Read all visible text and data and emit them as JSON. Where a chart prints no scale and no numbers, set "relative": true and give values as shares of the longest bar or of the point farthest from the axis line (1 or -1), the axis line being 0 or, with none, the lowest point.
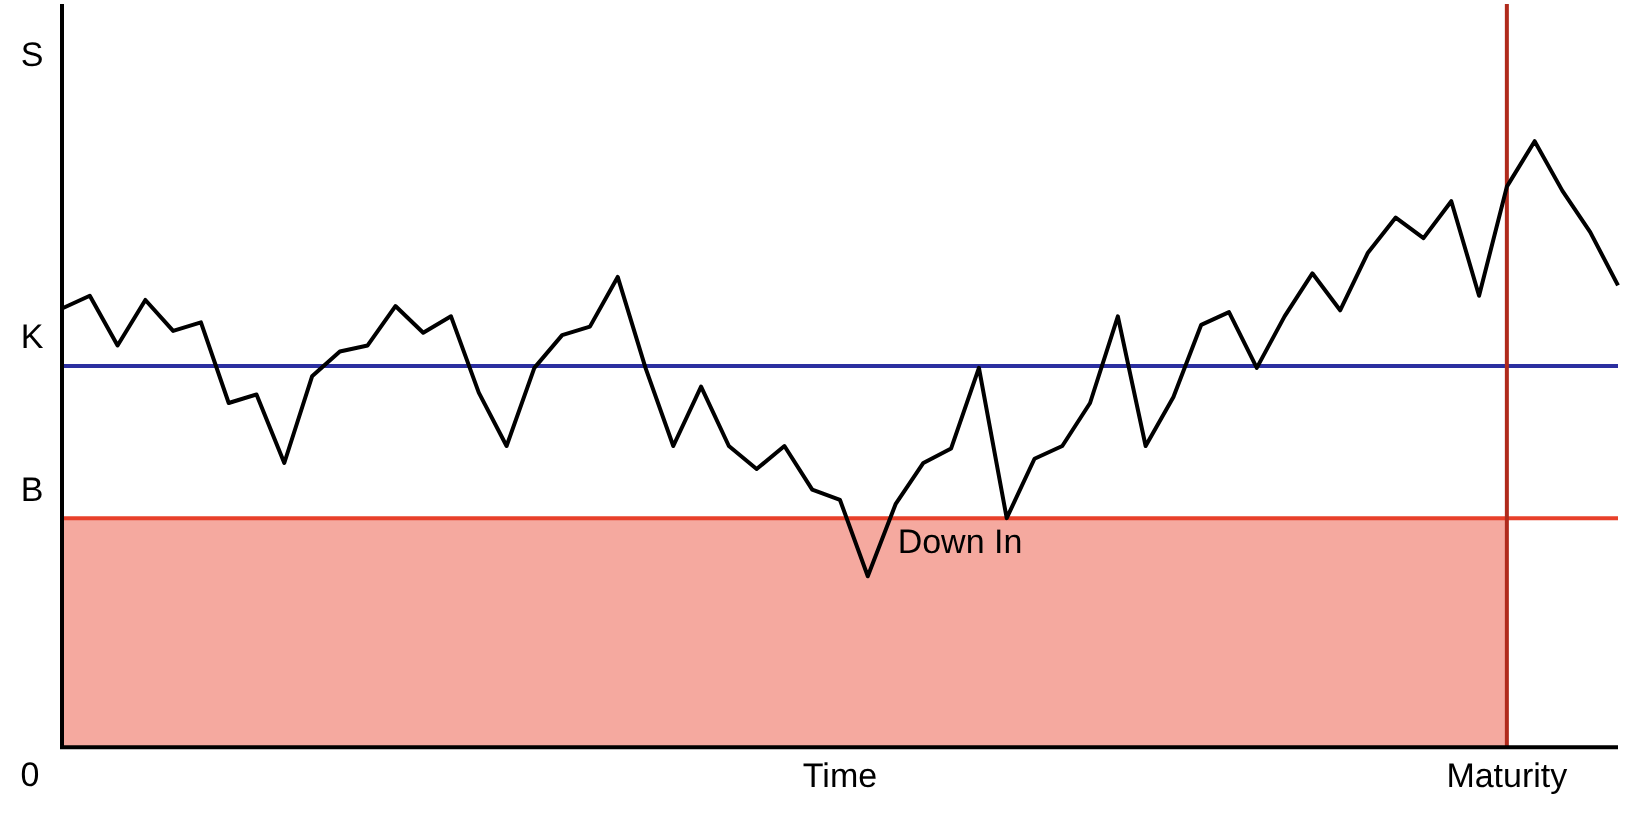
{
  "chart_data": {
    "type": "line",
    "relative": true,
    "ylabel": "S",
    "legend": false,
    "marker": "none",
    "annotations": [
      "0"
    ],
    "categories": [
      null,
      null,
      null,
      null,
      null,
      null,
      null,
      null,
      null,
      null,
      null,
      null,
      null,
      null,
      null,
      null,
      null,
      null,
      null,
      null,
      null,
      null,
      null,
      null,
      null,
      null,
      null,
      null,
      "Time",
      null,
      null,
      null,
      null,
      null,
      null,
      null,
      null,
      null,
      null,
      null,
      null,
      null,
      null,
      null,
      null,
      null,
      null,
      null,
      null,
      null,
      null,
      null,
      "Maturity",
      null,
      null,
      null,
      null
    ],
    "series": [
      {
        "color": "#000000",
        "values": [
          0.724,
          0.745,
          0.663,
          0.738,
          0.687,
          0.701,
          0.568,
          0.582,
          0.469,
          0.612,
          0.653,
          0.663,
          0.728,
          0.684,
          0.711,
          0.585,
          0.497,
          0.626,
          0.68,
          0.694,
          0.776,
          0.626,
          0.497,
          0.595,
          0.497,
          0.459,
          0.497,
          0.425,
          0.408,
          0.282,
          0.401,
          0.469,
          0.493,
          0.626,
          0.378,
          0.476,
          0.497,
          0.568,
          0.711,
          0.497,
          0.578,
          0.697,
          0.718,
          0.626,
          0.711,
          0.782,
          0.721,
          0.816,
          0.874,
          0.84,
          0.901,
          0.745,
          0.925,
          1,
          0.918,
          0.85,
          0.762
        ]
      }
    ],
    "bands": [
      {
        "axis": "y",
        "from": 0,
        "to": 0.378,
        "label": "Down In",
        "color": "#e8402a"
      }
    ],
    "ref_lines": [
      {
        "axis": "y",
        "value": 0.629,
        "label": "K",
        "color": "#2b2fa0"
      },
      {
        "axis": "y",
        "value": 0.378,
        "label": "B",
        "color": "#e8402a"
      },
      {
        "axis": "x",
        "value": "Maturity",
        "color": "#b02a1c"
      }
    ]
  }
}
